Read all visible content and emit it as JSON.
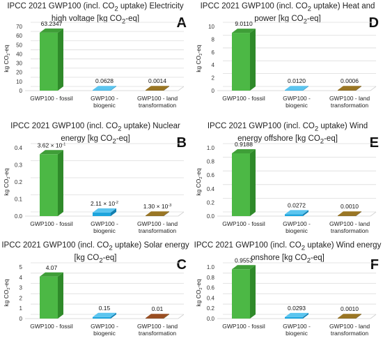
{
  "colors": {
    "fossil": "#4cb845",
    "fossil_side": "#2f8a2a",
    "fossil_top": "#3f9e38",
    "biogenic": "#1ea5dd",
    "biogenic_side": "#137fb0",
    "biogenic_top": "#5cc5ef",
    "land": "#7a5a12",
    "land_side": "#553e08",
    "land_top": "#9a7624",
    "land_c": "#7a3a14",
    "land_c_top": "#9a4e22"
  },
  "chart_data": [
    {
      "id": "A",
      "type": "bar",
      "title_parts": [
        "IPCC 2021 GWP100 (incl. CO",
        "2",
        " uptake) Electricity",
        "high voltage [kg CO",
        "2",
        "-eq]"
      ],
      "ylabel_parts": [
        "kg CO",
        "2",
        "-eq"
      ],
      "categories": [
        "GWP100 - fossil",
        "GWP100 - biogenic",
        "GWP100 - land transformation"
      ],
      "values": [
        63.2347,
        0.0628,
        0.0014
      ],
      "labels": [
        "63.2347",
        "0.0628",
        "0.0014"
      ],
      "ylim": [
        0,
        70
      ],
      "yticks": [
        0,
        10,
        20,
        30,
        40,
        50,
        60,
        70
      ],
      "ytick_labels": [
        "0",
        "10",
        "20",
        "30",
        "40",
        "50",
        "60",
        "70"
      ]
    },
    {
      "id": "D",
      "type": "bar",
      "title_parts": [
        "IPCC 2021 GWP100 (incl. CO",
        "2",
        " uptake) Heat and",
        "power [kg CO",
        "2",
        "-eq]"
      ],
      "ylabel_parts": [
        "kg CO",
        "2",
        "-eq"
      ],
      "categories": [
        "GWP100 - fossil",
        "GWP100 - biogenic",
        "GWP100 - land transformation"
      ],
      "values": [
        9.011,
        0.012,
        0.0006
      ],
      "labels": [
        "9.0110",
        "0.0120",
        "0.0006"
      ],
      "ylim": [
        0,
        10
      ],
      "yticks": [
        0,
        2,
        4,
        6,
        8,
        10
      ],
      "ytick_labels": [
        "0",
        "2",
        "4",
        "6",
        "8",
        "10"
      ]
    },
    {
      "id": "B",
      "type": "bar",
      "title_parts": [
        "IPCC 2021 GWP100 (incl. CO",
        "2",
        " uptake) Nuclear",
        "energy [kg CO",
        "2",
        "-eq]"
      ],
      "ylabel_parts": [
        "kg CO",
        "2",
        "-eq"
      ],
      "categories": [
        "GWP100 - fossil",
        "GWP100 - biogenic",
        "GWP100 - land transformation"
      ],
      "values": [
        0.362,
        0.0211,
        0.0013
      ],
      "labels": [
        "3.62 × 10⁻¹",
        "2.11 × 10⁻²",
        "1.30 × 10⁻³"
      ],
      "ylim": [
        0,
        0.4
      ],
      "yticks": [
        0,
        0.1,
        0.2,
        0.3,
        0.4
      ],
      "ytick_labels": [
        "0.0",
        "0.1",
        "0.2",
        "0.3",
        "0.4"
      ]
    },
    {
      "id": "E",
      "type": "bar",
      "title_parts": [
        "IPCC 2021 GWP100 (incl. CO",
        "2",
        " uptake) Wind",
        "energy offshore [kg CO",
        "2",
        "-eq]"
      ],
      "ylabel_parts": [
        "kg CO",
        "2",
        "-eq"
      ],
      "categories": [
        "GWP100 - fossil",
        "GWP100 - biogenic",
        "GWP100 - land transformation"
      ],
      "values": [
        0.9188,
        0.0272,
        0.001
      ],
      "labels": [
        "0.9188",
        "0.0272",
        "0.0010"
      ],
      "ylim": [
        0,
        1.0
      ],
      "yticks": [
        0,
        0.2,
        0.4,
        0.6,
        0.8,
        1.0
      ],
      "ytick_labels": [
        "0.0",
        "0.2",
        "0.4",
        "0.6",
        "0.8",
        "1.0"
      ]
    },
    {
      "id": "C",
      "type": "bar",
      "title_parts": [
        "IPCC 2021 GWP100 (incl. CO",
        "2",
        " uptake) Solar energy",
        "[kg CO",
        "2",
        "-eq]"
      ],
      "ylabel_parts": [
        "kg CO",
        "2",
        "-eq"
      ],
      "categories": [
        "GWP100 - fossil",
        "GWP100 - biogenic",
        "GWP100 - land transformation"
      ],
      "values": [
        4.07,
        0.15,
        0.01
      ],
      "labels": [
        "4.07",
        "0.15",
        "0.01"
      ],
      "ylim": [
        0,
        5
      ],
      "yticks": [
        0,
        1,
        2,
        3,
        4,
        5
      ],
      "ytick_labels": [
        "0",
        "1",
        "2",
        "3",
        "4",
        "5"
      ]
    },
    {
      "id": "F",
      "type": "bar",
      "title_parts": [
        "IPCC 2021 GWP100 (incl. CO",
        "2",
        " uptake) Wind energy",
        "onshore [kg CO",
        "2",
        "-eq]"
      ],
      "ylabel_parts": [
        "kg CO",
        "2",
        "-eq"
      ],
      "categories": [
        "GWP100 - fossil",
        "GWP100 - biogenic",
        "GWP100 - land transformation"
      ],
      "values": [
        0.9553,
        0.0293,
        0.001
      ],
      "labels": [
        "0.9553",
        "0.0293",
        "0.0010"
      ],
      "ylim": [
        0,
        1.0
      ],
      "yticks": [
        0,
        0.2,
        0.4,
        0.6,
        0.8,
        1.0
      ],
      "ytick_labels": [
        "0.0",
        "0.2",
        "0.4",
        "0.6",
        "0.8",
        "1.0"
      ]
    }
  ]
}
